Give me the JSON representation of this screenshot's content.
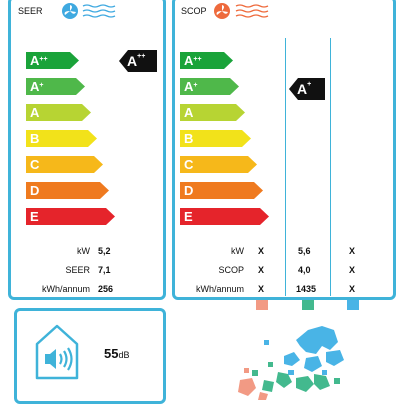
{
  "seer": {
    "title": "SEER",
    "rating": {
      "main": "A",
      "sup": "++"
    },
    "scale": [
      {
        "main": "A",
        "sup": "++",
        "color": "#1aa33a"
      },
      {
        "main": "A",
        "sup": "+",
        "color": "#4fb84a"
      },
      {
        "main": "A",
        "sup": "",
        "color": "#b7d433"
      },
      {
        "main": "B",
        "sup": "",
        "color": "#f2e21a"
      },
      {
        "main": "C",
        "sup": "",
        "color": "#f6b81a"
      },
      {
        "main": "D",
        "sup": "",
        "color": "#ef7a1f"
      },
      {
        "main": "E",
        "sup": "",
        "color": "#e5242b"
      }
    ],
    "rows": [
      {
        "label": "kW",
        "value": "5,2"
      },
      {
        "label": "SEER",
        "value": "7,1"
      },
      {
        "label": "kWh/annum",
        "value": "256"
      }
    ]
  },
  "scop": {
    "title": "SCOP",
    "rating": {
      "main": "A",
      "sup": "+"
    },
    "rows": [
      {
        "label": "kW",
        "cold": "X",
        "average": "5,6",
        "warm": "X"
      },
      {
        "label": "SCOP",
        "cold": "X",
        "average": "4,0",
        "warm": "X"
      },
      {
        "label": "kWh/annum",
        "cold": "X",
        "average": "1435",
        "warm": "X"
      }
    ],
    "zone_colors": {
      "cold": "#f29a84",
      "average": "#43b98e",
      "warm": "#49b4e6"
    }
  },
  "noise": {
    "value": "55",
    "unit": "dB"
  },
  "colors": {
    "border": "#3fb3d9",
    "rating_badge": "#111111"
  },
  "icons": [
    "fan-cool-icon",
    "fan-heat-icon",
    "speaker-house-icon",
    "europe-map-icon"
  ]
}
